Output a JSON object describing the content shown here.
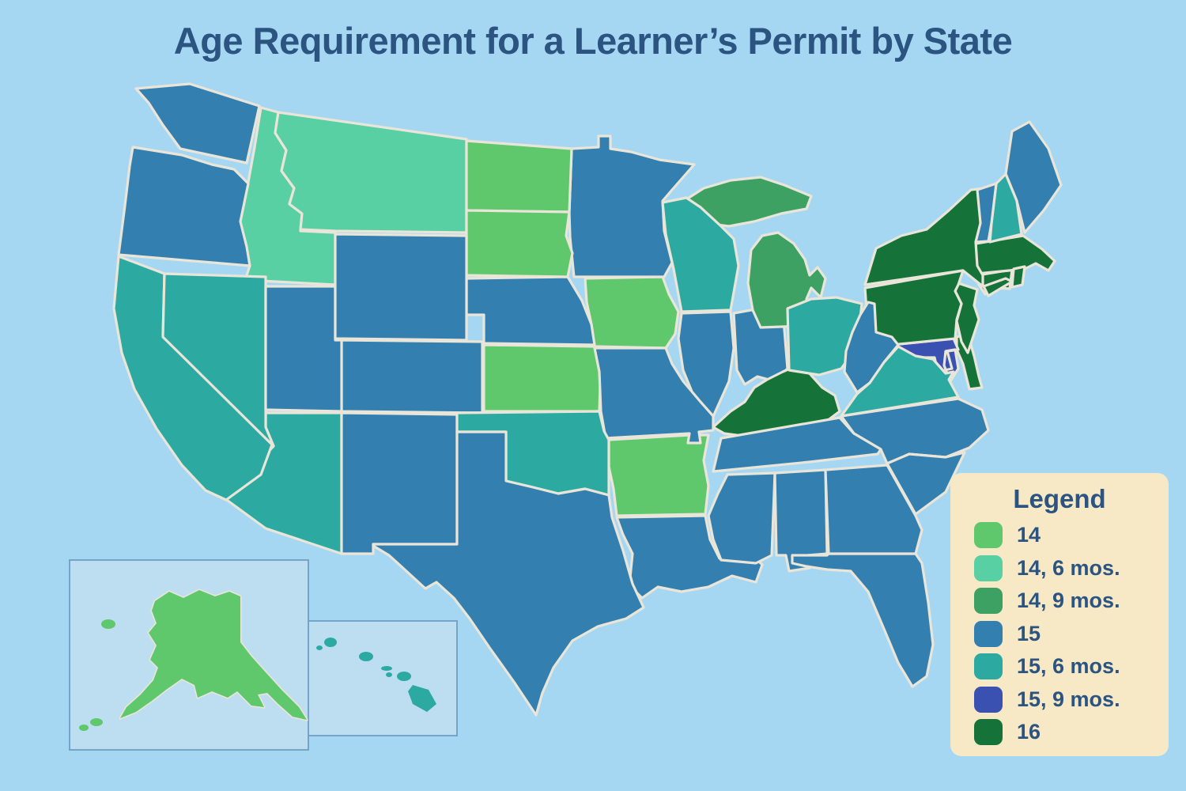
{
  "title": "Age Requirement for a Learner’s Permit by State",
  "legend": {
    "title": "Legend",
    "items": [
      {
        "label": "14"
      },
      {
        "label": "14, 6 mos."
      },
      {
        "label": "14, 9 mos."
      },
      {
        "label": "15"
      },
      {
        "label": "15, 6 mos."
      },
      {
        "label": "15, 9 mos."
      },
      {
        "label": "16"
      }
    ]
  },
  "colors": {
    "background": "#a6d7f2",
    "state_border": "#e9e5d8",
    "title_text": "#2b5481",
    "legend_background": "#f8e9c6",
    "legend_text": "#2b5481",
    "inset_fill": "#bddef1",
    "inset_border": "#74a5c8",
    "categories": {
      "14": "#5fc76c",
      "14, 6 mos.": "#59cfa4",
      "14, 9 mos.": "#3da164",
      "15": "#327fb0",
      "15, 6 mos.": "#2caaa2",
      "15, 9 mos.": "#3b51b2",
      "16": "#157239"
    }
  },
  "chart_data": {
    "type": "choropleth-map",
    "region": "United States",
    "title": "Age Requirement for a Learner’s Permit by State",
    "value_label": "Minimum learner's permit age",
    "categories": [
      "14",
      "14, 6 mos.",
      "14, 9 mos.",
      "15",
      "15, 6 mos.",
      "15, 9 mos.",
      "16"
    ],
    "states": [
      {
        "id": "AL",
        "name": "Alabama",
        "value": "15"
      },
      {
        "id": "AK",
        "name": "Alaska",
        "value": "14"
      },
      {
        "id": "AZ",
        "name": "Arizona",
        "value": "15, 6 mos."
      },
      {
        "id": "AR",
        "name": "Arkansas",
        "value": "14"
      },
      {
        "id": "CA",
        "name": "California",
        "value": "15, 6 mos."
      },
      {
        "id": "CO",
        "name": "Colorado",
        "value": "15"
      },
      {
        "id": "CT",
        "name": "Connecticut",
        "value": "16"
      },
      {
        "id": "DE",
        "name": "Delaware",
        "value": "16"
      },
      {
        "id": "FL",
        "name": "Florida",
        "value": "15"
      },
      {
        "id": "GA",
        "name": "Georgia",
        "value": "15"
      },
      {
        "id": "HI",
        "name": "Hawaii",
        "value": "15, 6 mos."
      },
      {
        "id": "ID",
        "name": "Idaho",
        "value": "14, 6 mos."
      },
      {
        "id": "IL",
        "name": "Illinois",
        "value": "15"
      },
      {
        "id": "IN",
        "name": "Indiana",
        "value": "15"
      },
      {
        "id": "IA",
        "name": "Iowa",
        "value": "14"
      },
      {
        "id": "KS",
        "name": "Kansas",
        "value": "14"
      },
      {
        "id": "KY",
        "name": "Kentucky",
        "value": "16"
      },
      {
        "id": "LA",
        "name": "Louisiana",
        "value": "15"
      },
      {
        "id": "ME",
        "name": "Maine",
        "value": "15"
      },
      {
        "id": "MD",
        "name": "Maryland",
        "value": "15, 9 mos."
      },
      {
        "id": "MA",
        "name": "Massachusetts",
        "value": "16"
      },
      {
        "id": "MI",
        "name": "Michigan",
        "value": "14, 9 mos."
      },
      {
        "id": "MN",
        "name": "Minnesota",
        "value": "15"
      },
      {
        "id": "MS",
        "name": "Mississippi",
        "value": "15"
      },
      {
        "id": "MO",
        "name": "Missouri",
        "value": "15"
      },
      {
        "id": "MT",
        "name": "Montana",
        "value": "14, 6 mos."
      },
      {
        "id": "NE",
        "name": "Nebraska",
        "value": "15"
      },
      {
        "id": "NV",
        "name": "Nevada",
        "value": "15, 6 mos."
      },
      {
        "id": "NH",
        "name": "New Hampshire",
        "value": "15, 6 mos."
      },
      {
        "id": "NJ",
        "name": "New Jersey",
        "value": "16"
      },
      {
        "id": "NM",
        "name": "New Mexico",
        "value": "15"
      },
      {
        "id": "NY",
        "name": "New York",
        "value": "16"
      },
      {
        "id": "NC",
        "name": "North Carolina",
        "value": "15"
      },
      {
        "id": "ND",
        "name": "North Dakota",
        "value": "14"
      },
      {
        "id": "OH",
        "name": "Ohio",
        "value": "15, 6 mos."
      },
      {
        "id": "OK",
        "name": "Oklahoma",
        "value": "15, 6 mos."
      },
      {
        "id": "OR",
        "name": "Oregon",
        "value": "15"
      },
      {
        "id": "PA",
        "name": "Pennsylvania",
        "value": "16"
      },
      {
        "id": "RI",
        "name": "Rhode Island",
        "value": "16"
      },
      {
        "id": "SC",
        "name": "South Carolina",
        "value": "15"
      },
      {
        "id": "SD",
        "name": "South Dakota",
        "value": "14"
      },
      {
        "id": "TN",
        "name": "Tennessee",
        "value": "15"
      },
      {
        "id": "TX",
        "name": "Texas",
        "value": "15"
      },
      {
        "id": "UT",
        "name": "Utah",
        "value": "15"
      },
      {
        "id": "VT",
        "name": "Vermont",
        "value": "15"
      },
      {
        "id": "VA",
        "name": "Virginia",
        "value": "15, 6 mos."
      },
      {
        "id": "WA",
        "name": "Washington",
        "value": "15"
      },
      {
        "id": "WV",
        "name": "West Virginia",
        "value": "15"
      },
      {
        "id": "WI",
        "name": "Wisconsin",
        "value": "15, 6 mos."
      },
      {
        "id": "WY",
        "name": "Wyoming",
        "value": "15"
      }
    ]
  }
}
